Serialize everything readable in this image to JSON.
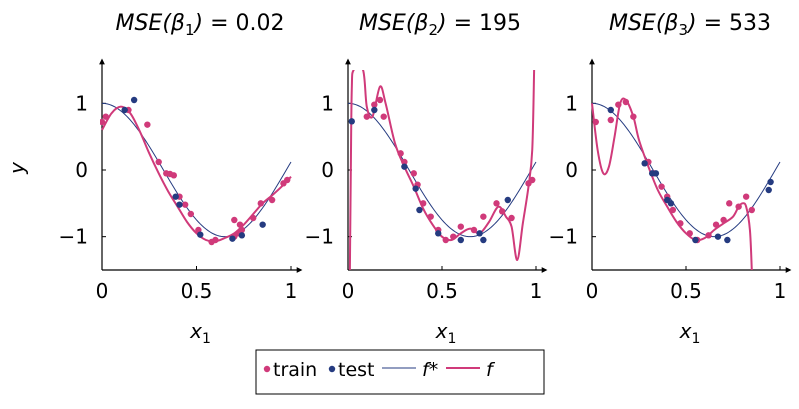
{
  "colors": {
    "train": "#d03a7a",
    "test": "#253b80",
    "f_star": "#253b80",
    "f": "#d03a7a",
    "axis": "#000000"
  },
  "legend": {
    "items": [
      {
        "label": "train",
        "kind": "marker",
        "series": "train"
      },
      {
        "label": "test",
        "kind": "marker",
        "series": "test"
      },
      {
        "label": "f*",
        "kind": "line",
        "series": "f_star"
      },
      {
        "label": "f",
        "kind": "line",
        "series": "f"
      }
    ]
  },
  "chart_data": [
    {
      "type": "scatter",
      "title": "MSE(β1) = 0.02",
      "xlabel": "x1",
      "ylabel": "y",
      "xlim": [
        0,
        1
      ],
      "ylim": [
        -1.5,
        1.5
      ],
      "xticks": [
        "0",
        "0.5",
        "1"
      ],
      "yticks": [
        "1",
        "0",
        "−1"
      ],
      "train": [
        [
          0.0,
          0.72
        ],
        [
          0.02,
          0.8
        ],
        [
          0.14,
          0.9
        ],
        [
          0.24,
          0.68
        ],
        [
          0.3,
          0.12
        ],
        [
          0.34,
          -0.05
        ],
        [
          0.36,
          -0.06
        ],
        [
          0.38,
          -0.08
        ],
        [
          0.41,
          -0.4
        ],
        [
          0.44,
          -0.52
        ],
        [
          0.47,
          -0.66
        ],
        [
          0.51,
          -0.9
        ],
        [
          0.58,
          -1.08
        ],
        [
          0.6,
          -1.05
        ],
        [
          0.7,
          -1.0
        ],
        [
          0.72,
          -0.95
        ],
        [
          0.8,
          -0.72
        ],
        [
          0.84,
          -0.5
        ],
        [
          0.9,
          -0.45
        ],
        [
          0.96,
          -0.2
        ],
        [
          0.98,
          -0.15
        ],
        [
          0.74,
          -0.9
        ],
        [
          0.7,
          -0.75
        ],
        [
          0.73,
          -0.82
        ]
      ],
      "test": [
        [
          0.12,
          0.9
        ],
        [
          0.17,
          1.05
        ],
        [
          0.39,
          -0.4
        ],
        [
          0.41,
          -0.52
        ],
        [
          0.52,
          -0.97
        ],
        [
          0.69,
          -1.03
        ],
        [
          0.85,
          -0.82
        ],
        [
          0.74,
          -0.98
        ]
      ],
      "f_star": "cos(2*pi*x/1.3)",
      "f_fit": [
        [
          0.0,
          0.6
        ],
        [
          0.05,
          0.85
        ],
        [
          0.1,
          0.95
        ],
        [
          0.15,
          0.85
        ],
        [
          0.2,
          0.58
        ],
        [
          0.25,
          0.25
        ],
        [
          0.3,
          -0.05
        ],
        [
          0.35,
          -0.32
        ],
        [
          0.4,
          -0.55
        ],
        [
          0.45,
          -0.78
        ],
        [
          0.5,
          -0.95
        ],
        [
          0.55,
          -1.05
        ],
        [
          0.6,
          -1.07
        ],
        [
          0.65,
          -1.02
        ],
        [
          0.7,
          -0.95
        ],
        [
          0.75,
          -0.82
        ],
        [
          0.8,
          -0.66
        ],
        [
          0.85,
          -0.5
        ],
        [
          0.9,
          -0.38
        ],
        [
          0.95,
          -0.25
        ],
        [
          1.0,
          -0.1
        ]
      ]
    },
    {
      "type": "scatter",
      "title": "MSE(β2) = 195",
      "xlabel": "x1",
      "ylabel": "",
      "xlim": [
        0,
        1
      ],
      "ylim": [
        -1.5,
        1.5
      ],
      "xticks": [
        "0",
        "0.5",
        "1"
      ],
      "yticks": [
        "1",
        "0",
        "−1"
      ],
      "train": [
        [
          0.1,
          0.8
        ],
        [
          0.14,
          0.98
        ],
        [
          0.17,
          1.05
        ],
        [
          0.19,
          0.8
        ],
        [
          0.28,
          0.25
        ],
        [
          0.3,
          0.12
        ],
        [
          0.35,
          -0.05
        ],
        [
          0.37,
          -0.22
        ],
        [
          0.4,
          -0.5
        ],
        [
          0.44,
          -0.7
        ],
        [
          0.48,
          -0.9
        ],
        [
          0.52,
          -1.05
        ],
        [
          0.56,
          -1.0
        ],
        [
          0.6,
          -0.85
        ],
        [
          0.67,
          -0.9
        ],
        [
          0.72,
          -0.7
        ],
        [
          0.79,
          -0.5
        ],
        [
          0.82,
          -0.62
        ],
        [
          0.87,
          -0.72
        ],
        [
          0.96,
          -0.2
        ],
        [
          0.98,
          -0.15
        ]
      ],
      "test": [
        [
          0.02,
          0.73
        ],
        [
          0.14,
          0.9
        ],
        [
          0.3,
          0.05
        ],
        [
          0.36,
          -0.28
        ],
        [
          0.38,
          -0.6
        ],
        [
          0.48,
          -0.95
        ],
        [
          0.6,
          -1.05
        ],
        [
          0.7,
          -0.95
        ],
        [
          0.72,
          -1.05
        ],
        [
          0.85,
          -0.45
        ]
      ],
      "f_star": "cos(2*pi*x/1.3)",
      "f_fit": [
        [
          0.01,
          -1.5
        ],
        [
          0.015,
          0.0
        ],
        [
          0.02,
          1.2
        ],
        [
          0.03,
          1.5
        ],
        [
          0.08,
          1.5
        ],
        [
          0.1,
          0.95
        ],
        [
          0.13,
          0.8
        ],
        [
          0.17,
          1.25
        ],
        [
          0.2,
          1.0
        ],
        [
          0.25,
          0.4
        ],
        [
          0.3,
          0.05
        ],
        [
          0.35,
          -0.25
        ],
        [
          0.4,
          -0.58
        ],
        [
          0.45,
          -0.82
        ],
        [
          0.5,
          -1.0
        ],
        [
          0.55,
          -1.05
        ],
        [
          0.6,
          -0.95
        ],
        [
          0.65,
          -0.88
        ],
        [
          0.7,
          -0.95
        ],
        [
          0.75,
          -0.78
        ],
        [
          0.8,
          -0.55
        ],
        [
          0.84,
          -0.7
        ],
        [
          0.87,
          -0.85
        ],
        [
          0.9,
          -1.35
        ],
        [
          0.93,
          -0.8
        ],
        [
          0.96,
          -0.25
        ],
        [
          0.98,
          0.3
        ],
        [
          0.99,
          1.5
        ]
      ]
    },
    {
      "type": "scatter",
      "title": "MSE(β3) = 533",
      "xlabel": "x1",
      "ylabel": "",
      "xlim": [
        0,
        1
      ],
      "ylim": [
        -1.5,
        1.5
      ],
      "xticks": [
        "0",
        "0.5",
        "1"
      ],
      "yticks": [
        "1",
        "0",
        "−1"
      ],
      "train": [
        [
          0.02,
          0.72
        ],
        [
          0.1,
          0.75
        ],
        [
          0.14,
          0.98
        ],
        [
          0.18,
          1.02
        ],
        [
          0.22,
          0.8
        ],
        [
          0.3,
          0.12
        ],
        [
          0.33,
          -0.05
        ],
        [
          0.37,
          -0.25
        ],
        [
          0.4,
          -0.4
        ],
        [
          0.43,
          -0.6
        ],
        [
          0.47,
          -0.8
        ],
        [
          0.52,
          -0.95
        ],
        [
          0.56,
          -1.05
        ],
        [
          0.62,
          -0.98
        ],
        [
          0.66,
          -0.82
        ],
        [
          0.7,
          -0.75
        ],
        [
          0.73,
          -0.5
        ],
        [
          0.78,
          -0.55
        ],
        [
          0.82,
          -0.4
        ],
        [
          0.85,
          -0.6
        ]
      ],
      "test": [
        [
          0.1,
          0.9
        ],
        [
          0.28,
          0.1
        ],
        [
          0.32,
          -0.05
        ],
        [
          0.34,
          -0.05
        ],
        [
          0.4,
          -0.45
        ],
        [
          0.42,
          -0.5
        ],
        [
          0.55,
          -1.05
        ],
        [
          0.67,
          -1.0
        ],
        [
          0.72,
          -1.05
        ],
        [
          0.94,
          -0.3
        ],
        [
          0.95,
          -0.18
        ]
      ],
      "f_star": "cos(2*pi*x/1.3)",
      "f_fit": [
        [
          0.0,
          1.0
        ],
        [
          0.03,
          0.3
        ],
        [
          0.06,
          -0.05
        ],
        [
          0.09,
          0.05
        ],
        [
          0.12,
          0.5
        ],
        [
          0.15,
          1.0
        ],
        [
          0.18,
          1.05
        ],
        [
          0.22,
          0.8
        ],
        [
          0.25,
          0.45
        ],
        [
          0.3,
          0.05
        ],
        [
          0.35,
          -0.3
        ],
        [
          0.4,
          -0.55
        ],
        [
          0.45,
          -0.78
        ],
        [
          0.5,
          -0.95
        ],
        [
          0.55,
          -1.05
        ],
        [
          0.6,
          -1.02
        ],
        [
          0.65,
          -0.9
        ],
        [
          0.7,
          -0.8
        ],
        [
          0.75,
          -0.7
        ],
        [
          0.78,
          -0.55
        ],
        [
          0.8,
          -0.5
        ],
        [
          0.82,
          -0.55
        ],
        [
          0.84,
          -0.9
        ],
        [
          0.85,
          -1.5
        ]
      ]
    }
  ]
}
